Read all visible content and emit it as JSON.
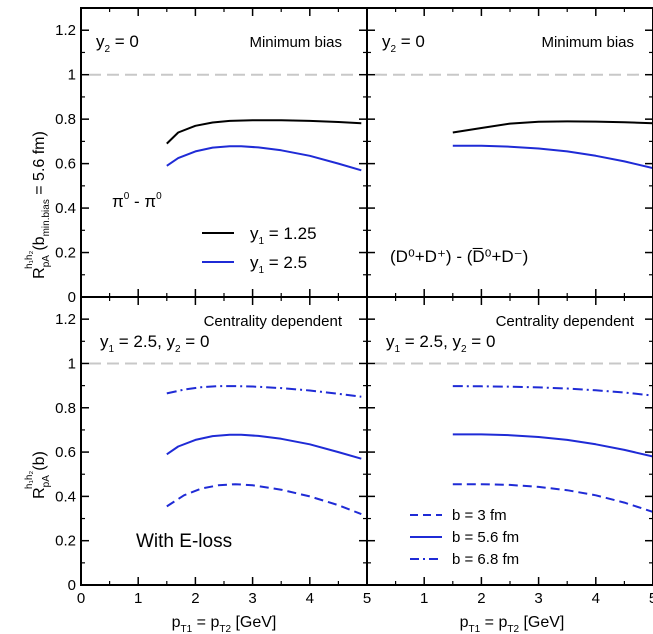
{
  "figure": {
    "xlabel": {
      "main": "p",
      "sub1": "T1",
      "mid": " = p",
      "sub2": "T2",
      "tail": " [GeV]"
    },
    "ylabel_top": {
      "main": "R",
      "sub": "pA",
      "sup": "h₁h₂",
      "tail": "(b",
      "tail_sub": "min.bias",
      "tail_end": " = 5.6 fm)"
    },
    "ylabel_bottom": {
      "main": "R",
      "sub": "pA",
      "sup": "h₁h₂",
      "tail": "(b)"
    }
  },
  "panels": {
    "top_left": {
      "label_y2": {
        "main": "y",
        "sub": "2",
        "tail": " = 0"
      },
      "label_mb": "Minimum bias",
      "label_species": {
        "a": "π",
        "a_sup": "0",
        "mid": " - π",
        "b_sup": "0"
      },
      "legend": [
        {
          "main": "y",
          "sub": "1",
          "tail": " = 1.25",
          "color": "#000000",
          "dash": "solid"
        },
        {
          "main": "y",
          "sub": "1",
          "tail": " = 2.5",
          "color": "#1f2bd6",
          "dash": "solid"
        }
      ]
    },
    "top_right": {
      "label_y2": {
        "main": "y",
        "sub": "2",
        "tail": " = 0"
      },
      "label_mb": "Minimum bias",
      "label_species": "(D⁰+D⁺) - (D̅⁰+D⁻)"
    },
    "bottom_left": {
      "label_cd": "Centrality dependent",
      "label_y": {
        "a": "y",
        "a_sub": "1",
        "a_tail": " = 2.5, y",
        "b_sub": "2",
        "b_tail": " = 0"
      },
      "label_eloss": "With E-loss"
    },
    "bottom_right": {
      "label_cd": "Centrality dependent",
      "label_y": {
        "a": "y",
        "a_sub": "1",
        "a_tail": " = 2.5, y",
        "b_sub": "2",
        "b_tail": " = 0"
      },
      "legend": [
        {
          "label": "b = 3 fm",
          "dash": "dashed"
        },
        {
          "label": "b = 5.6 fm",
          "dash": "solid"
        },
        {
          "label": "b = 6.8 fm",
          "dash": "dashdot"
        }
      ]
    }
  },
  "chart_data": [
    {
      "panel": "top_left",
      "type": "line",
      "xlim": [
        0,
        5
      ],
      "ylim": [
        0,
        1.3
      ],
      "x_ticks": [
        0,
        1,
        2,
        3,
        4,
        5
      ],
      "y_ticks": [
        0,
        0.2,
        0.4,
        0.6,
        0.8,
        1,
        1.2
      ],
      "y_tick_labels": [
        "0",
        "0.2",
        "0.4",
        "0.6",
        "0.8",
        "1",
        "1.2"
      ],
      "reference_line": 1.0,
      "series": [
        {
          "name": "y₁ = 1.25",
          "color": "#000000",
          "dash": "solid",
          "x": [
            1.5,
            1.7,
            2.0,
            2.3,
            2.6,
            3.0,
            3.5,
            4.0,
            4.5,
            4.9
          ],
          "y": [
            0.69,
            0.74,
            0.77,
            0.785,
            0.792,
            0.795,
            0.795,
            0.792,
            0.787,
            0.782
          ]
        },
        {
          "name": "y₁ = 2.5",
          "color": "#1f2bd6",
          "dash": "solid",
          "x": [
            1.5,
            1.7,
            2.0,
            2.3,
            2.6,
            2.8,
            3.1,
            3.5,
            4.0,
            4.5,
            4.9
          ],
          "y": [
            0.59,
            0.625,
            0.655,
            0.672,
            0.678,
            0.678,
            0.673,
            0.66,
            0.635,
            0.6,
            0.57
          ]
        }
      ]
    },
    {
      "panel": "top_right",
      "type": "line",
      "xlim": [
        0,
        5
      ],
      "ylim": [
        0,
        1.3
      ],
      "x_ticks": [
        0,
        1,
        2,
        3,
        4,
        5
      ],
      "y_ticks": [
        0,
        0.2,
        0.4,
        0.6,
        0.8,
        1,
        1.2
      ],
      "reference_line": 1.0,
      "series": [
        {
          "color": "#000000",
          "dash": "solid",
          "x": [
            1.5,
            2.0,
            2.5,
            3.0,
            3.5,
            4.0,
            4.5,
            5.0
          ],
          "y": [
            0.74,
            0.76,
            0.78,
            0.788,
            0.79,
            0.789,
            0.786,
            0.782
          ]
        },
        {
          "color": "#1f2bd6",
          "dash": "solid",
          "x": [
            1.5,
            2.0,
            2.5,
            3.0,
            3.5,
            4.0,
            4.5,
            5.0
          ],
          "y": [
            0.68,
            0.68,
            0.676,
            0.668,
            0.655,
            0.635,
            0.61,
            0.58
          ]
        }
      ]
    },
    {
      "panel": "bottom_left",
      "type": "line",
      "xlim": [
        0,
        5
      ],
      "ylim": [
        0,
        1.3
      ],
      "x_ticks": [
        0,
        1,
        2,
        3,
        4,
        5
      ],
      "x_tick_labels": [
        "0",
        "1",
        "2",
        "3",
        "4",
        "5"
      ],
      "y_ticks": [
        0,
        0.2,
        0.4,
        0.6,
        0.8,
        1,
        1.2
      ],
      "y_tick_labels": [
        "0",
        "0.2",
        "0.4",
        "0.6",
        "0.8",
        "1",
        "1.2"
      ],
      "reference_line": 1.0,
      "series": [
        {
          "name": "b = 3 fm",
          "color": "#1f2bd6",
          "dash": "dashed",
          "x": [
            1.5,
            1.8,
            2.1,
            2.4,
            2.7,
            3.0,
            3.5,
            4.0,
            4.5,
            4.9
          ],
          "y": [
            0.355,
            0.405,
            0.435,
            0.45,
            0.455,
            0.45,
            0.43,
            0.4,
            0.36,
            0.32
          ]
        },
        {
          "name": "b = 5.6 fm",
          "color": "#1f2bd6",
          "dash": "solid",
          "x": [
            1.5,
            1.7,
            2.0,
            2.3,
            2.6,
            2.8,
            3.1,
            3.5,
            4.0,
            4.5,
            4.9
          ],
          "y": [
            0.59,
            0.625,
            0.655,
            0.672,
            0.678,
            0.678,
            0.673,
            0.66,
            0.635,
            0.6,
            0.57
          ]
        },
        {
          "name": "b = 6.8 fm",
          "color": "#1f2bd6",
          "dash": "dashdot",
          "x": [
            1.5,
            1.8,
            2.1,
            2.4,
            2.7,
            3.0,
            3.5,
            4.0,
            4.5,
            4.9
          ],
          "y": [
            0.865,
            0.882,
            0.893,
            0.898,
            0.898,
            0.896,
            0.889,
            0.878,
            0.863,
            0.85
          ]
        }
      ]
    },
    {
      "panel": "bottom_right",
      "type": "line",
      "xlim": [
        0,
        5
      ],
      "ylim": [
        0,
        1.3
      ],
      "x_ticks": [
        0,
        1,
        2,
        3,
        4,
        5
      ],
      "x_tick_labels": [
        "",
        "1",
        "2",
        "3",
        "4",
        "5"
      ],
      "y_ticks": [
        0,
        0.2,
        0.4,
        0.6,
        0.8,
        1,
        1.2
      ],
      "reference_line": 1.0,
      "series": [
        {
          "name": "b = 3 fm",
          "color": "#1f2bd6",
          "dash": "dashed",
          "x": [
            1.5,
            2.0,
            2.5,
            3.0,
            3.5,
            4.0,
            4.5,
            5.0
          ],
          "y": [
            0.455,
            0.455,
            0.452,
            0.443,
            0.428,
            0.405,
            0.372,
            0.33
          ]
        },
        {
          "name": "b = 5.6 fm",
          "color": "#1f2bd6",
          "dash": "solid",
          "x": [
            1.5,
            2.0,
            2.5,
            3.0,
            3.5,
            4.0,
            4.5,
            5.0
          ],
          "y": [
            0.68,
            0.68,
            0.676,
            0.668,
            0.655,
            0.635,
            0.61,
            0.58
          ]
        },
        {
          "name": "b = 6.8 fm",
          "color": "#1f2bd6",
          "dash": "dashdot",
          "x": [
            1.5,
            2.0,
            2.5,
            3.0,
            3.5,
            4.0,
            4.5,
            5.0
          ],
          "y": [
            0.898,
            0.897,
            0.895,
            0.892,
            0.887,
            0.879,
            0.869,
            0.855
          ]
        }
      ]
    }
  ]
}
